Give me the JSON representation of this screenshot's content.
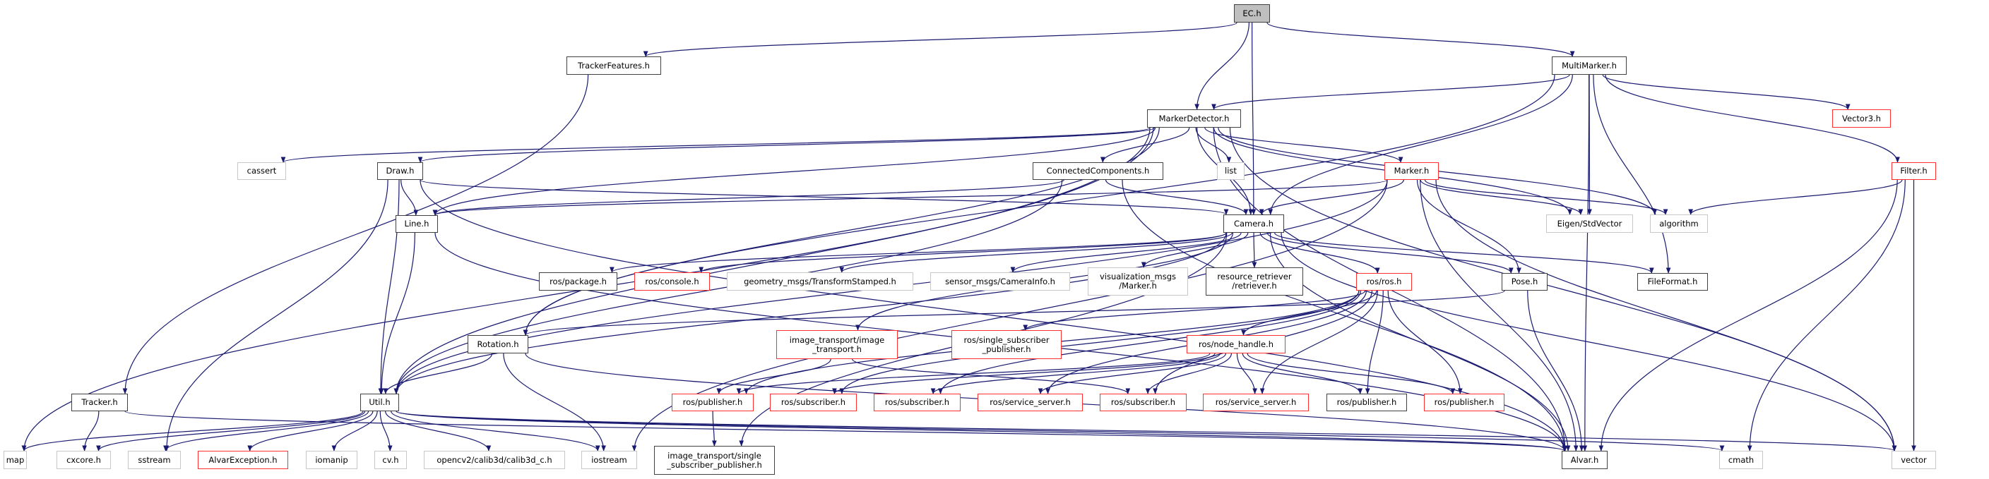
{
  "graph": {
    "edge_color": "#191970",
    "border_colors": {
      "documented": "#404040",
      "incomplete": "#ff0000",
      "external": "#bfbfbf"
    },
    "focus_fill": "#bfbfbf",
    "nodes": [
      {
        "id": "ec",
        "label": "EC.h",
        "kind": "focus"
      },
      {
        "id": "trackerfeatures",
        "label": "TrackerFeatures.h",
        "kind": "black"
      },
      {
        "id": "multimarker",
        "label": "MultiMarker.h",
        "kind": "black"
      },
      {
        "id": "markerdetector",
        "label": "MarkerDetector.h",
        "kind": "black"
      },
      {
        "id": "vector3",
        "label": "Vector3.h",
        "kind": "red"
      },
      {
        "id": "cassert",
        "label": "cassert",
        "kind": "gray"
      },
      {
        "id": "draw",
        "label": "Draw.h",
        "kind": "black"
      },
      {
        "id": "connected",
        "label": "ConnectedComponents.h",
        "kind": "black"
      },
      {
        "id": "list",
        "label": "list",
        "kind": "gray"
      },
      {
        "id": "marker",
        "label": "Marker.h",
        "kind": "red"
      },
      {
        "id": "filter",
        "label": "Filter.h",
        "kind": "red"
      },
      {
        "id": "line",
        "label": "Line.h",
        "kind": "black"
      },
      {
        "id": "camera",
        "label": "Camera.h",
        "kind": "black"
      },
      {
        "id": "eigen",
        "label": "Eigen/StdVector",
        "kind": "gray"
      },
      {
        "id": "algorithm",
        "label": "algorithm",
        "kind": "gray"
      },
      {
        "id": "rospackage",
        "label": "ros/package.h",
        "kind": "black"
      },
      {
        "id": "rosconsole",
        "label": "ros/console.h",
        "kind": "red"
      },
      {
        "id": "geomsgs",
        "label": "geometry_msgs/TransformStamped.h",
        "kind": "gray"
      },
      {
        "id": "sensormsgs",
        "label": "sensor_msgs/CameraInfo.h",
        "kind": "gray"
      },
      {
        "id": "vismsgs",
        "label": "visualization_msgs\n/Marker.h",
        "kind": "gray"
      },
      {
        "id": "retriever",
        "label": "resource_retriever\n/retriever.h",
        "kind": "black"
      },
      {
        "id": "rosros",
        "label": "ros/ros.h",
        "kind": "red"
      },
      {
        "id": "pose",
        "label": "Pose.h",
        "kind": "black"
      },
      {
        "id": "fileformat",
        "label": "FileFormat.h",
        "kind": "black"
      },
      {
        "id": "rotation",
        "label": "Rotation.h",
        "kind": "black"
      },
      {
        "id": "imgtransport",
        "label": "image_transport/image\n_transport.h",
        "kind": "red"
      },
      {
        "id": "rossinglesub",
        "label": "ros/single_subscriber\n_publisher.h",
        "kind": "red"
      },
      {
        "id": "nodehandle",
        "label": "ros/node_handle.h",
        "kind": "red"
      },
      {
        "id": "tracker",
        "label": "Tracker.h",
        "kind": "black"
      },
      {
        "id": "util",
        "label": "Util.h",
        "kind": "black"
      },
      {
        "id": "pub1",
        "label": "ros/publisher.h",
        "kind": "red"
      },
      {
        "id": "sub1",
        "label": "ros/subscriber.h",
        "kind": "red"
      },
      {
        "id": "sub2",
        "label": "ros/subscriber.h",
        "kind": "red"
      },
      {
        "id": "srv1",
        "label": "ros/service_server.h",
        "kind": "red"
      },
      {
        "id": "sub3",
        "label": "ros/subscriber.h",
        "kind": "red"
      },
      {
        "id": "srv2",
        "label": "ros/service_server.h",
        "kind": "red"
      },
      {
        "id": "pub2",
        "label": "ros/publisher.h",
        "kind": "black"
      },
      {
        "id": "pub3",
        "label": "ros/publisher.h",
        "kind": "red"
      },
      {
        "id": "map",
        "label": "map",
        "kind": "gray"
      },
      {
        "id": "cxcore",
        "label": "cxcore.h",
        "kind": "gray"
      },
      {
        "id": "sstream",
        "label": "sstream",
        "kind": "gray"
      },
      {
        "id": "alvarexc",
        "label": "AlvarException.h",
        "kind": "red"
      },
      {
        "id": "iomanip",
        "label": "iomanip",
        "kind": "gray"
      },
      {
        "id": "cv",
        "label": "cv.h",
        "kind": "gray"
      },
      {
        "id": "calib3d",
        "label": "opencv2/calib3d/calib3d_c.h",
        "kind": "gray"
      },
      {
        "id": "iostream",
        "label": "iostream",
        "kind": "gray"
      },
      {
        "id": "itsinglesub",
        "label": "image_transport/single\n_subscriber_publisher.h",
        "kind": "black"
      },
      {
        "id": "alvar",
        "label": "Alvar.h",
        "kind": "black"
      },
      {
        "id": "cmath",
        "label": "cmath",
        "kind": "gray"
      },
      {
        "id": "vector",
        "label": "vector",
        "kind": "gray"
      }
    ],
    "edges": [
      [
        "ec",
        "trackerfeatures"
      ],
      [
        "ec",
        "markerdetector"
      ],
      [
        "ec",
        "camera"
      ],
      [
        "ec",
        "multimarker"
      ],
      [
        "trackerfeatures",
        "tracker"
      ],
      [
        "tracker",
        "cxcore"
      ],
      [
        "tracker",
        "alvar"
      ],
      [
        "multimarker",
        "markerdetector"
      ],
      [
        "multimarker",
        "rotation"
      ],
      [
        "multimarker",
        "camera"
      ],
      [
        "multimarker",
        "eigen"
      ],
      [
        "multimarker",
        "alvar"
      ],
      [
        "multimarker",
        "vector3"
      ],
      [
        "multimarker",
        "filter"
      ],
      [
        "multimarker",
        "fileformat"
      ],
      [
        "markerdetector",
        "map"
      ],
      [
        "markerdetector",
        "cassert"
      ],
      [
        "markerdetector",
        "draw"
      ],
      [
        "markerdetector",
        "util"
      ],
      [
        "markerdetector",
        "rotation"
      ],
      [
        "markerdetector",
        "line"
      ],
      [
        "markerdetector",
        "connected"
      ],
      [
        "markerdetector",
        "list"
      ],
      [
        "markerdetector",
        "camera"
      ],
      [
        "markerdetector",
        "marker"
      ],
      [
        "markerdetector",
        "eigen"
      ],
      [
        "markerdetector",
        "algorithm"
      ],
      [
        "markerdetector",
        "vector"
      ],
      [
        "markerdetector",
        "alvar"
      ],
      [
        "draw",
        "line"
      ],
      [
        "draw",
        "util"
      ],
      [
        "draw",
        "sstream"
      ],
      [
        "draw",
        "camera"
      ],
      [
        "draw",
        "alvar"
      ],
      [
        "connected",
        "line"
      ],
      [
        "connected",
        "util"
      ],
      [
        "connected",
        "camera"
      ],
      [
        "connected",
        "alvar"
      ],
      [
        "marker",
        "util"
      ],
      [
        "marker",
        "camera"
      ],
      [
        "marker",
        "eigen"
      ],
      [
        "marker",
        "algorithm"
      ],
      [
        "marker",
        "pose"
      ],
      [
        "marker",
        "alvar"
      ],
      [
        "marker",
        "vector"
      ],
      [
        "marker",
        "iostream"
      ],
      [
        "marker",
        "line"
      ],
      [
        "line",
        "util"
      ],
      [
        "line",
        "alvar"
      ],
      [
        "camera",
        "util"
      ],
      [
        "camera",
        "rospackage"
      ],
      [
        "camera",
        "rosconsole"
      ],
      [
        "camera",
        "geomsgs"
      ],
      [
        "camera",
        "sensormsgs"
      ],
      [
        "camera",
        "vismsgs"
      ],
      [
        "camera",
        "retriever"
      ],
      [
        "camera",
        "rosros"
      ],
      [
        "camera",
        "pose"
      ],
      [
        "camera",
        "fileformat"
      ],
      [
        "camera",
        "alvar"
      ],
      [
        "camera",
        "vector"
      ],
      [
        "camera",
        "imgtransport"
      ],
      [
        "camera",
        "itsinglesub"
      ],
      [
        "filter",
        "algorithm"
      ],
      [
        "filter",
        "alvar"
      ],
      [
        "filter",
        "cmath"
      ],
      [
        "filter",
        "vector"
      ],
      [
        "pose",
        "rotation"
      ],
      [
        "pose",
        "alvar"
      ],
      [
        "rotation",
        "util"
      ],
      [
        "rotation",
        "iostream"
      ],
      [
        "rotation",
        "alvar"
      ],
      [
        "rosros",
        "rossinglesub"
      ],
      [
        "rosros",
        "nodehandle"
      ],
      [
        "rosros",
        "pub1"
      ],
      [
        "rosros",
        "sub1"
      ],
      [
        "rosros",
        "sub2"
      ],
      [
        "rosros",
        "srv1"
      ],
      [
        "rosros",
        "sub3"
      ],
      [
        "rosros",
        "srv2"
      ],
      [
        "rosros",
        "pub2"
      ],
      [
        "rosros",
        "pub3"
      ],
      [
        "imgtransport",
        "pub1"
      ],
      [
        "imgtransport",
        "sub3"
      ],
      [
        "nodehandle",
        "pub1"
      ],
      [
        "nodehandle",
        "sub1"
      ],
      [
        "nodehandle",
        "sub2"
      ],
      [
        "nodehandle",
        "srv1"
      ],
      [
        "nodehandle",
        "sub3"
      ],
      [
        "nodehandle",
        "srv2"
      ],
      [
        "nodehandle",
        "pub2"
      ],
      [
        "nodehandle",
        "pub3"
      ],
      [
        "pub1",
        "itsinglesub"
      ],
      [
        "util",
        "map"
      ],
      [
        "util",
        "cxcore"
      ],
      [
        "util",
        "sstream"
      ],
      [
        "util",
        "alvarexc"
      ],
      [
        "util",
        "iomanip"
      ],
      [
        "util",
        "cv"
      ],
      [
        "util",
        "calib3d"
      ],
      [
        "util",
        "iostream"
      ],
      [
        "util",
        "alvar"
      ],
      [
        "util",
        "cmath"
      ],
      [
        "util",
        "vector"
      ]
    ]
  }
}
